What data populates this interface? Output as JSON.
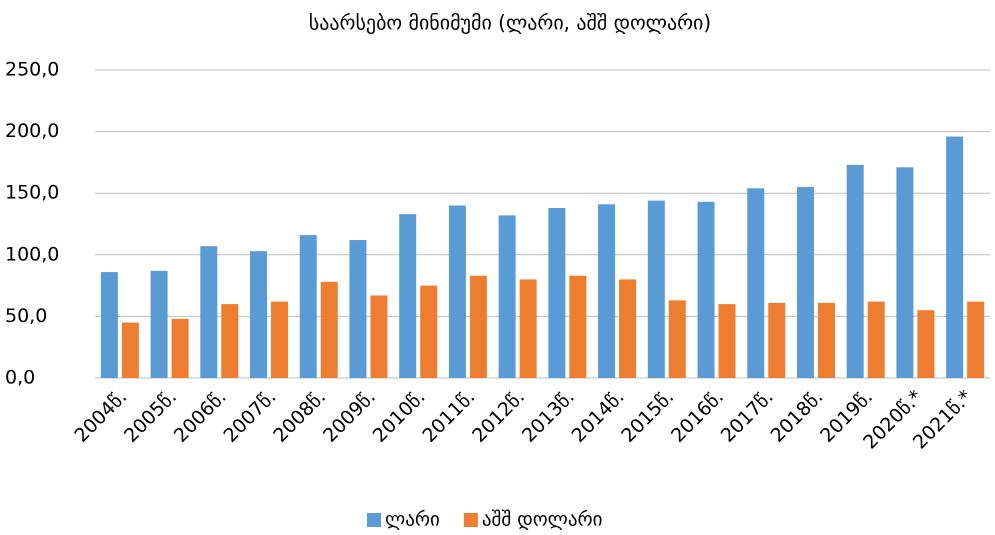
{
  "chart_data": {
    "type": "bar",
    "title": "საარსებო მინიმუმი (ლარი, აშშ დოლარი)",
    "categories": [
      "2004წ.",
      "2005წ.",
      "2006წ.",
      "2007წ.",
      "2008წ.",
      "2009წ.",
      "2010წ.",
      "2011წ.",
      "2012წ.",
      "2013წ.",
      "2014წ.",
      "2015წ.",
      "2016წ.",
      "2017წ.",
      "2018წ.",
      "2019წ.",
      "2020წ.*",
      "2021წ.*"
    ],
    "series": [
      {
        "name": "ლარი",
        "color": "#5b9bd5",
        "values": [
          86,
          87,
          107,
          103,
          116,
          112,
          133,
          140,
          132,
          138,
          141,
          144,
          143,
          154,
          155,
          173,
          171,
          196
        ]
      },
      {
        "name": "აშშ დოლარი",
        "color": "#ed7d31",
        "values": [
          45,
          48,
          60,
          62,
          78,
          67,
          75,
          83,
          80,
          83,
          80,
          63,
          60,
          61,
          61,
          62,
          55,
          62
        ]
      }
    ],
    "ylim": [
      0,
      250
    ],
    "yticks": [
      {
        "value": 0,
        "label": "0,0"
      },
      {
        "value": 50,
        "label": "50,0"
      },
      {
        "value": 100,
        "label": "100,0"
      },
      {
        "value": 150,
        "label": "150,0"
      },
      {
        "value": 200,
        "label": "200,0"
      },
      {
        "value": 250,
        "label": "250,0"
      }
    ],
    "grid": true,
    "legend": "bottom"
  }
}
